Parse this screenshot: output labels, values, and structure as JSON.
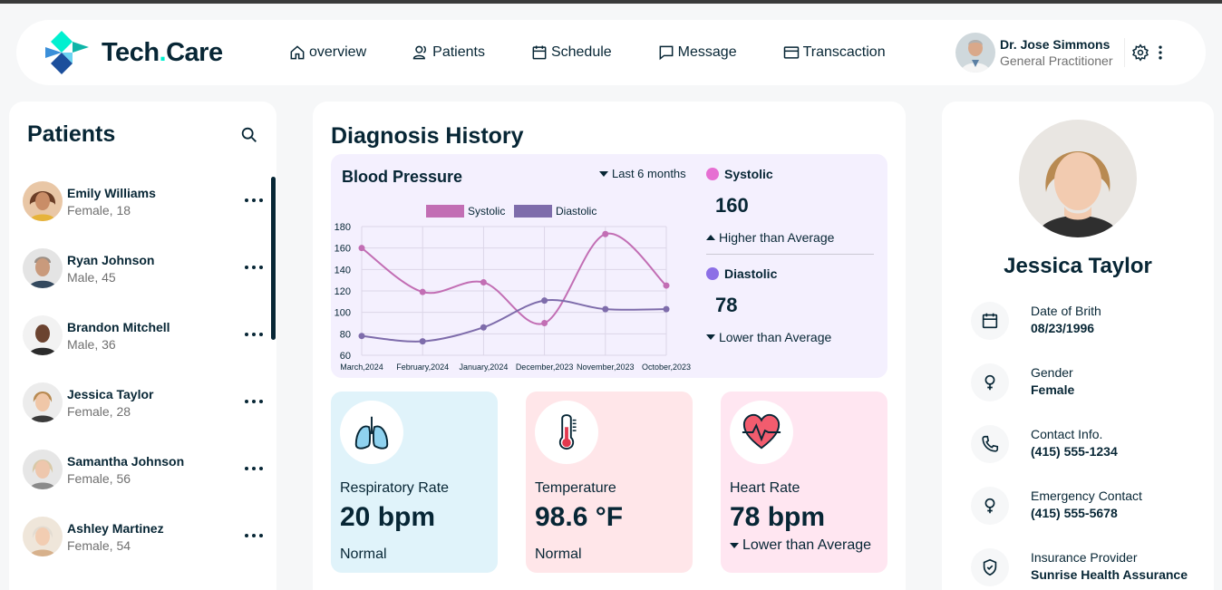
{
  "app": {
    "name_main": "Tech",
    "name_dot": ".",
    "name_end": "Care"
  },
  "nav": [
    {
      "label": "overview",
      "icon": "home-icon"
    },
    {
      "label": "Patients",
      "icon": "users-icon"
    },
    {
      "label": "Schedule",
      "icon": "calendar-icon"
    },
    {
      "label": "Message",
      "icon": "chat-icon"
    },
    {
      "label": "Transcaction",
      "icon": "credit-card-icon"
    }
  ],
  "doctor": {
    "name": "Dr. Jose Simmons",
    "role": "General Practitioner"
  },
  "patients": {
    "title": "Patients",
    "items": [
      {
        "name": "Emily Williams",
        "meta": "Female, 18"
      },
      {
        "name": "Ryan Johnson",
        "meta": "Male, 45"
      },
      {
        "name": "Brandon Mitchell",
        "meta": "Male, 36"
      },
      {
        "name": "Jessica Taylor",
        "meta": "Female, 28"
      },
      {
        "name": "Samantha Johnson",
        "meta": "Female, 56"
      },
      {
        "name": "Ashley Martinez",
        "meta": "Female, 54"
      }
    ]
  },
  "diagnosis": {
    "title": "Diagnosis History",
    "bp_title": "Blood Pressure",
    "range": "Last 6 months",
    "systolic": {
      "label": "Systolic",
      "value": "160",
      "note": "Higher than Average",
      "color": "#e66fd2"
    },
    "diastolic": {
      "label": "Diastolic",
      "value": "78",
      "note": "Lower than Average",
      "color": "#8c6fe6"
    }
  },
  "chart_data": {
    "type": "line",
    "categories": [
      "March,2024",
      "February,2024",
      "January,2024",
      "December,2023",
      "November,2023",
      "October,2023"
    ],
    "series": [
      {
        "name": "Systolic",
        "values": [
          160,
          119,
          128,
          90,
          173,
          125
        ],
        "color": "#c26eb4"
      },
      {
        "name": "Diastolic",
        "values": [
          78,
          73,
          86,
          111,
          103,
          103
        ],
        "color": "#7e6cab"
      }
    ],
    "ylim": [
      60,
      180
    ],
    "yticks": [
      "180",
      "160",
      "140",
      "120",
      "100",
      "80",
      "60"
    ],
    "ytick_values": [
      180,
      160,
      140,
      120,
      100,
      80,
      60
    ]
  },
  "vitals": [
    {
      "label": "Respiratory Rate",
      "value": "20 bpm",
      "note": "Normal",
      "bg": "#e0f3fa"
    },
    {
      "label": "Temperature",
      "value": "98.6 °F",
      "note": "Normal",
      "bg": "#ffe6e9"
    },
    {
      "label": "Heart Rate",
      "value": "78 bpm",
      "note": "Lower than Average",
      "bg": "#ffe6f1"
    }
  ],
  "profile": {
    "name": "Jessica Taylor",
    "fields": [
      {
        "label": "Date of Brith",
        "value": "08/23/1996"
      },
      {
        "label": "Gender",
        "value": "Female"
      },
      {
        "label": "Contact Info.",
        "value": "(415) 555-1234"
      },
      {
        "label": "Emergency Contact",
        "value": "(415) 555-5678"
      },
      {
        "label": "Insurance Provider",
        "value": "Sunrise Health Assurance"
      }
    ]
  }
}
